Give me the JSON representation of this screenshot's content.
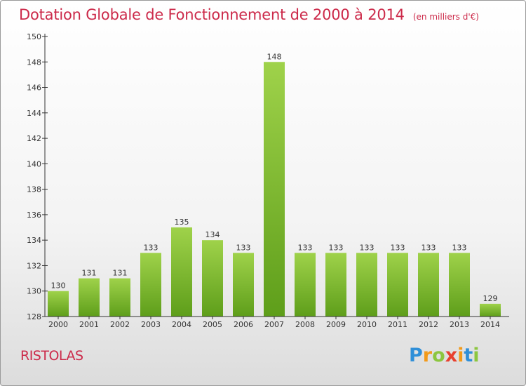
{
  "header": {
    "title": "Dotation Globale de Fonctionnement de 2000 à 2014",
    "unit": "(en milliers d'€)"
  },
  "commune": "RISTOLAS",
  "logo": {
    "letters": [
      "P",
      "r",
      "o",
      "x",
      "i",
      "t",
      "i"
    ],
    "colors": [
      "#2f8fd8",
      "#f29a1a",
      "#8cc63f",
      "#e8402f",
      "#f29a1a",
      "#2f8fd8",
      "#8cc63f"
    ]
  },
  "colors": {
    "bar_top": "#9fd24a",
    "bar_bottom": "#5e9e1a",
    "axis": "#333333",
    "title": "#cc2a4a"
  },
  "chart_data": {
    "type": "bar",
    "categories": [
      "2000",
      "2001",
      "2002",
      "2003",
      "2004",
      "2005",
      "2006",
      "2007",
      "2008",
      "2009",
      "2010",
      "2011",
      "2012",
      "2013",
      "2014"
    ],
    "values": [
      130,
      131,
      131,
      133,
      135,
      134,
      133,
      148,
      133,
      133,
      133,
      133,
      133,
      133,
      129
    ],
    "value_labels": [
      "130",
      "131",
      "131",
      "133",
      "135",
      "134",
      "133",
      "148",
      "133",
      "133",
      "133",
      "133",
      "133",
      "133",
      "129"
    ],
    "yticks": [
      128,
      130,
      132,
      134,
      136,
      138,
      140,
      142,
      144,
      146,
      148,
      150
    ],
    "ytick_labels": [
      "128",
      "130",
      "132",
      "134",
      "136",
      "138",
      "140",
      "142",
      "144",
      "146",
      "148",
      "150"
    ],
    "ylim": [
      128,
      150
    ],
    "title": "Dotation Globale de Fonctionnement de 2000 à 2014",
    "xlabel": "",
    "ylabel": "",
    "grid": false,
    "legend": "none"
  }
}
